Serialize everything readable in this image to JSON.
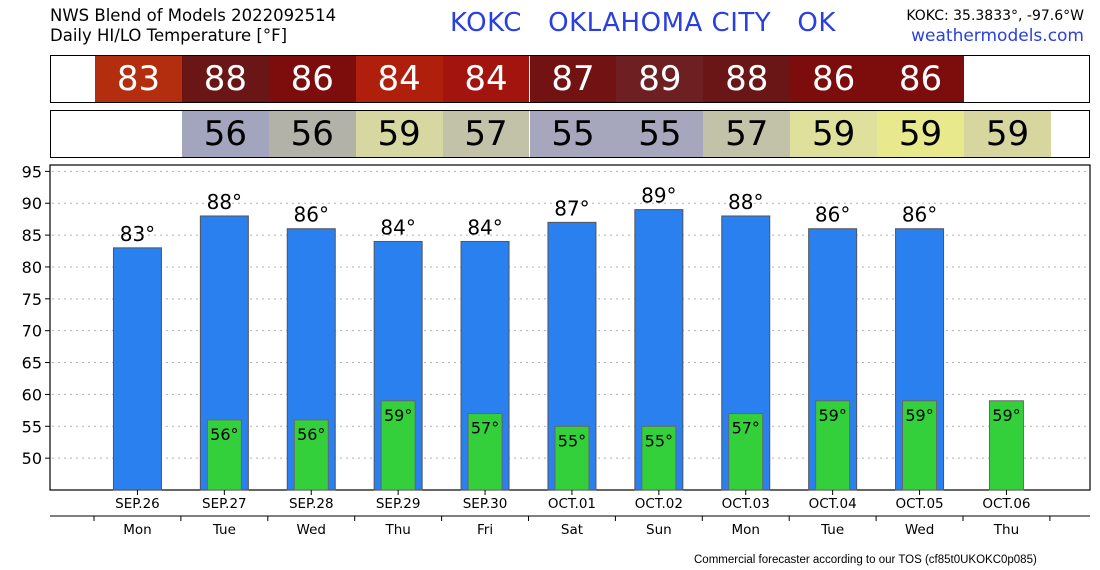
{
  "header": {
    "title_line1": "NWS Blend of Models 2022092514",
    "title_line2": "Daily HI/LO Temperature [°F]",
    "station": "KOKC   OKLAHOMA CITY   OK",
    "coords": "KOKC: 35.3833°, -97.6°W",
    "site": "weathermodels.com"
  },
  "strips": {
    "hi": [
      {
        "label": "83",
        "color": "#b22e0f"
      },
      {
        "label": "88",
        "color": "#6b1616"
      },
      {
        "label": "86",
        "color": "#7d0d0d"
      },
      {
        "label": "84",
        "color": "#b01e0c"
      },
      {
        "label": "84",
        "color": "#a3140f"
      },
      {
        "label": "87",
        "color": "#721212"
      },
      {
        "label": "89",
        "color": "#6e1f22"
      },
      {
        "label": "88",
        "color": "#6b1616"
      },
      {
        "label": "86",
        "color": "#7d0d0d"
      },
      {
        "label": "86",
        "color": "#7d0d0d"
      }
    ],
    "lo": [
      {
        "label": "56",
        "color": "#a3a4bd"
      },
      {
        "label": "56",
        "color": "#b3b2a9"
      },
      {
        "label": "59",
        "color": "#d7d8a1"
      },
      {
        "label": "57",
        "color": "#c2c2a8"
      },
      {
        "label": "55",
        "color": "#a6a6bd"
      },
      {
        "label": "55",
        "color": "#a6a6bd"
      },
      {
        "label": "57",
        "color": "#c2c2a8"
      },
      {
        "label": "59",
        "color": "#dfe09c"
      },
      {
        "label": "59",
        "color": "#e8e88c"
      },
      {
        "label": "59",
        "color": "#d7d69f"
      }
    ]
  },
  "chart_data": {
    "type": "bar",
    "categories": [
      "SEP.26",
      "SEP.27",
      "SEP.28",
      "SEP.29",
      "SEP.30",
      "OCT.01",
      "OCT.02",
      "OCT.03",
      "OCT.04",
      "OCT.05",
      "OCT.06"
    ],
    "weekdays": [
      "Mon",
      "Tue",
      "Wed",
      "Thu",
      "Fri",
      "Sat",
      "Sun",
      "Mon",
      "Tue",
      "Wed",
      "Thu"
    ],
    "series": [
      {
        "values": [
          83,
          88,
          86,
          84,
          84,
          87,
          89,
          88,
          86,
          86,
          null
        ],
        "labels": [
          "83°",
          "88°",
          "86°",
          "84°",
          "84°",
          "87°",
          "89°",
          "88°",
          "86°",
          "86°",
          ""
        ],
        "color": "#2a80ee"
      },
      {
        "values": [
          null,
          56,
          56,
          59,
          57,
          55,
          55,
          57,
          59,
          59,
          59
        ],
        "labels": [
          "",
          "56°",
          "56°",
          "59°",
          "57°",
          "55°",
          "55°",
          "57°",
          "59°",
          "59°",
          "59°"
        ],
        "color": "#33d03c"
      }
    ],
    "ylim": [
      45,
      96
    ],
    "yticks": [
      95,
      90,
      85,
      80,
      75,
      70,
      65,
      60,
      55,
      50
    ],
    "grid": true
  },
  "footer": "Commercial forecaster according to our TOS (cf85t0UKOKC0p085)"
}
